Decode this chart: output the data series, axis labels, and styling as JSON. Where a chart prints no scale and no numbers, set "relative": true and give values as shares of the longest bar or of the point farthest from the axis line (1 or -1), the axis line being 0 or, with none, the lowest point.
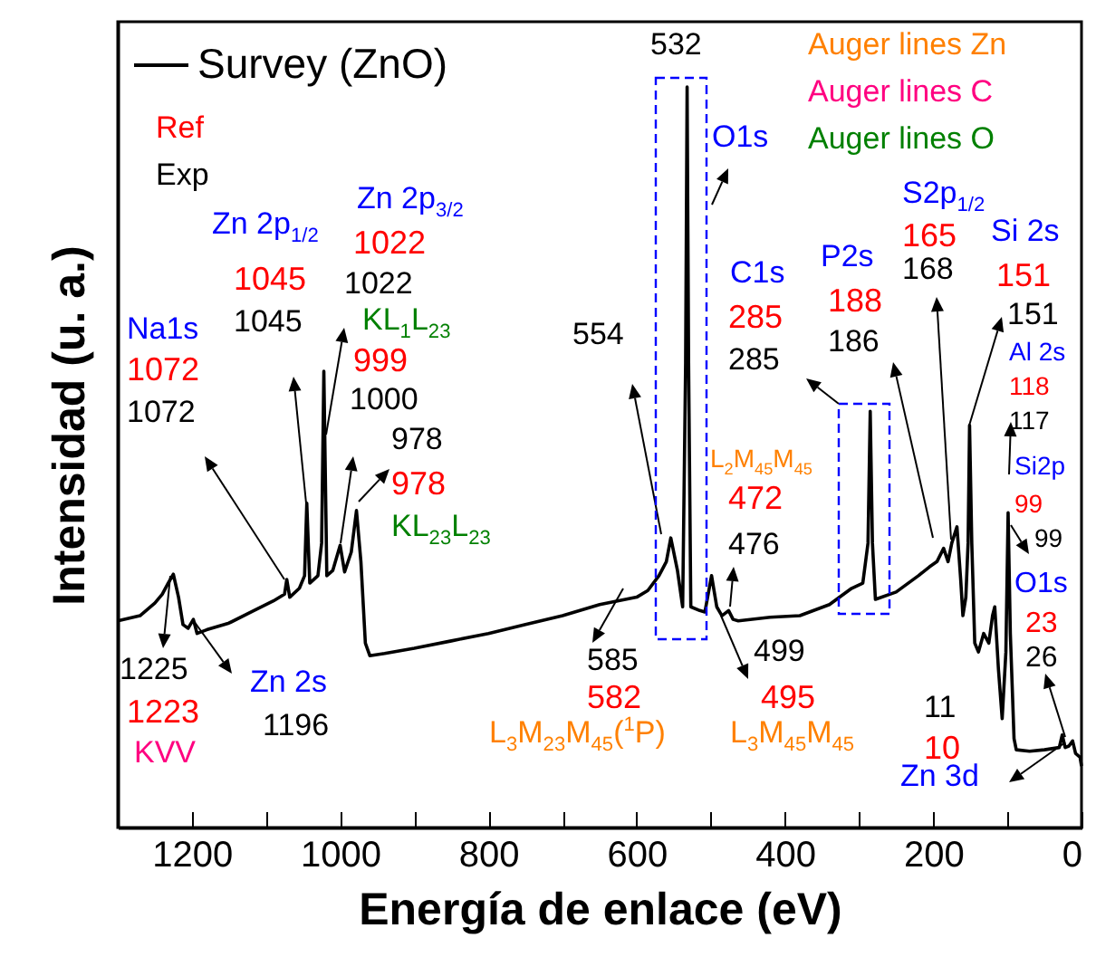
{
  "chart_data": {
    "type": "line",
    "relative": true,
    "xlabel": "Energía de enlace (eV)",
    "ylabel": "Intensidad (u. a.)",
    "xlim": [
      1300,
      0
    ],
    "xticks": [
      {
        "value": 1300,
        "label": null
      },
      1200,
      {
        "value": 1100,
        "label": null
      },
      1000,
      {
        "value": 900,
        "label": null
      },
      800,
      {
        "value": 700,
        "label": null
      },
      600,
      {
        "value": 500,
        "label": null
      },
      400,
      {
        "value": 300,
        "label": null
      },
      200,
      {
        "value": 100,
        "label": null
      },
      0
    ],
    "grid": false,
    "legend": "top left",
    "marker": "none",
    "line_style": "solid",
    "x": [
      1300,
      1270,
      1250,
      1240,
      1232,
      1225,
      1218,
      1212,
      1205,
      1198,
      1193,
      1180,
      1150,
      1120,
      1090,
      1075,
      1072,
      1068,
      1055,
      1048,
      1045,
      1041,
      1030,
      1025,
      1022,
      1018,
      1010,
      1000,
      994,
      985,
      978,
      972,
      966,
      960,
      940,
      900,
      850,
      800,
      750,
      700,
      650,
      600,
      585,
      570,
      560,
      554,
      545,
      538,
      534,
      532,
      530,
      527,
      515,
      508,
      499,
      492,
      485,
      476,
      470,
      463,
      420,
      380,
      340,
      310,
      295,
      288,
      285,
      282,
      278,
      250,
      220,
      205,
      195,
      186,
      180,
      175,
      168,
      163,
      160,
      156,
      153,
      151,
      148,
      144,
      139,
      132,
      125,
      120,
      117,
      112,
      107,
      102,
      99,
      96,
      91,
      88,
      70,
      50,
      30,
      26,
      22,
      17,
      12,
      8,
      2,
      0
    ],
    "series": [
      {
        "name": "Survey (ZnO)",
        "color": "#000000",
        "values": [
          0.279,
          0.286,
          0.303,
          0.315,
          0.33,
          0.342,
          0.311,
          0.274,
          0.269,
          0.281,
          0.262,
          0.267,
          0.276,
          0.291,
          0.306,
          0.315,
          0.335,
          0.311,
          0.323,
          0.34,
          0.438,
          0.33,
          0.34,
          0.384,
          0.616,
          0.34,
          0.347,
          0.381,
          0.345,
          0.372,
          0.428,
          0.359,
          0.249,
          0.232,
          0.235,
          0.242,
          0.252,
          0.262,
          0.274,
          0.286,
          0.301,
          0.311,
          0.32,
          0.34,
          0.359,
          0.391,
          0.347,
          0.298,
          0.628,
          1.0,
          0.628,
          0.298,
          0.293,
          0.291,
          0.34,
          0.298,
          0.286,
          0.293,
          0.281,
          0.279,
          0.284,
          0.286,
          0.301,
          0.323,
          0.33,
          0.384,
          0.562,
          0.384,
          0.308,
          0.318,
          0.34,
          0.352,
          0.359,
          0.377,
          0.359,
          0.384,
          0.406,
          0.335,
          0.286,
          0.311,
          0.384,
          0.543,
          0.384,
          0.249,
          0.237,
          0.262,
          0.249,
          0.286,
          0.298,
          0.213,
          0.147,
          0.237,
          0.425,
          0.262,
          0.12,
          0.105,
          0.103,
          0.105,
          0.108,
          0.125,
          0.108,
          0.11,
          0.117,
          0.1,
          0.095,
          0.083
        ]
      }
    ],
    "annotations": [
      "Ref",
      "Exp",
      "Auger lines Zn",
      "Auger lines C",
      "Auger lines O",
      "532",
      "O1s",
      "Zn 2p$_{1/2}$",
      "1045",
      "1045",
      "Zn 2p$_{3/2}$",
      "1022",
      "1022",
      "Na1s",
      "1072",
      "1072",
      "KL$_{1}$L$_{23}$",
      "999",
      "1000",
      "978",
      "978",
      "KL$_{23}$L$_{23}$",
      "554",
      "C1s",
      "285",
      "285",
      "P2s",
      "188",
      "186",
      "S2p$_{1/2}$",
      "165",
      "168",
      "Si 2s",
      "151",
      "151",
      "Al 2s",
      "118",
      "117",
      "Si2p",
      "99",
      "99",
      "O1s",
      "23",
      "26",
      "L$_{2}$M$_{45}$M$_{45}$",
      "472",
      "476",
      "585",
      "582",
      "L$_{3}$M$_{23}$M$_{45}$($^{1}$P)",
      "499",
      "495",
      "L$_{3}$M$_{45}$M$_{45}$",
      "11",
      "10",
      "Zn 3d",
      "1225",
      "1223",
      "KVV",
      "Zn 2s",
      "1196"
    ]
  }
}
